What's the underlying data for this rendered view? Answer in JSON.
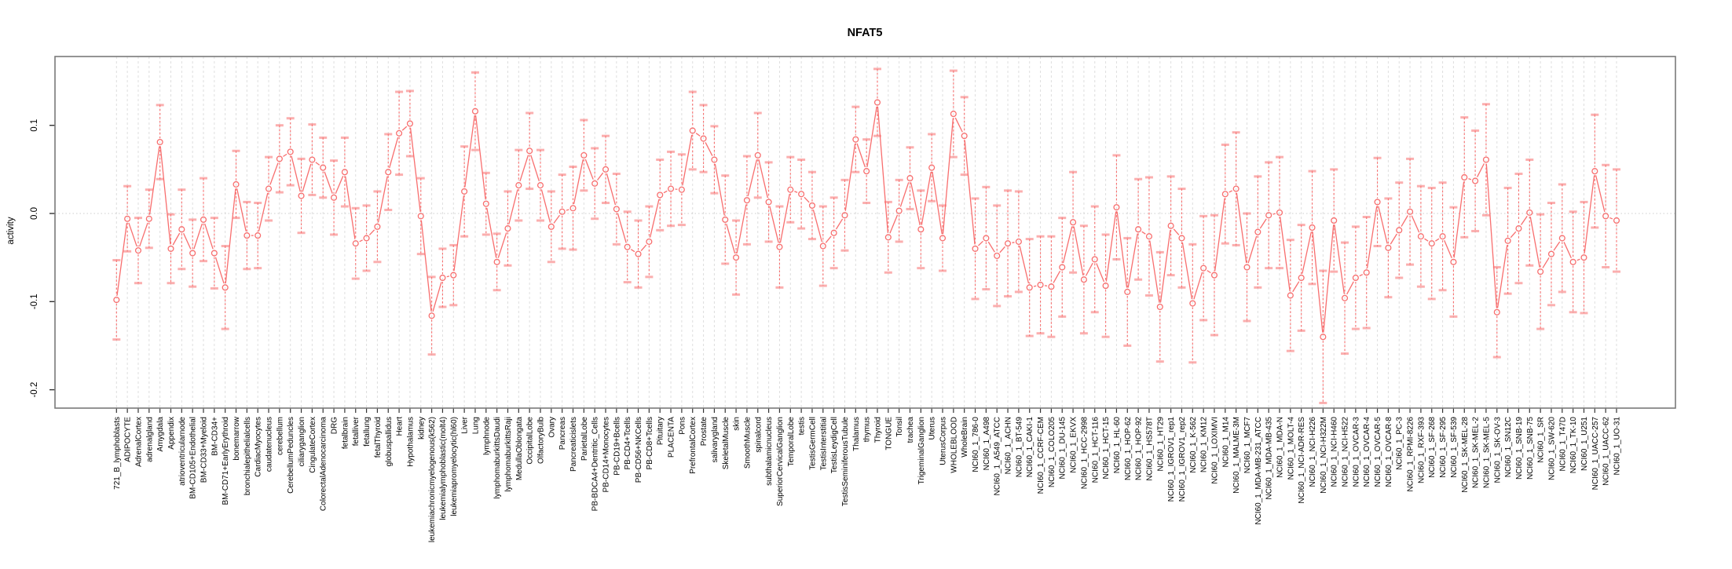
{
  "title": "NFAT5",
  "ylabel": "activity",
  "colors": {
    "series": "#f86e6e",
    "series_light": "rgba(248,110,110,0.55)",
    "grid": "#dedede",
    "zero_line": "#cccccc",
    "box_border": "#7a7a7a",
    "tick": "#333333",
    "text": "#000000"
  },
  "chart_data": {
    "type": "line",
    "title": "NFAT5",
    "xlabel": "",
    "ylabel": "activity",
    "legend": "none",
    "grid": "vertical dashed line per category; dotted horizontal line at y=0",
    "marker": "open-circle with symmetric error bars",
    "ylim": [
      -0.221,
      0.178
    ],
    "yticks": [
      0.1,
      0.0,
      -0.1,
      -0.2
    ],
    "ytick_labels": [
      "0.1",
      "0.0",
      "-0.1",
      "-0.2"
    ],
    "categories": [
      "721_B_lymphoblasts",
      "ADIPOCYTE",
      "AdrenalCortex",
      "adrenalgland",
      "Amygdala",
      "Appendix",
      "atrioventricularnode",
      "BM-CD105+Endothelial",
      "BM-CD33+Myeloid",
      "BM-CD34+",
      "BM-CD71+EarlyErythroid",
      "bonemarrow",
      "bronchialepithelialcells",
      "CardiacMyocytes",
      "caudatenucleus",
      "cerebellum",
      "CerebellumPeduncles",
      "ciliaryganglion",
      "CingulateCortex",
      "ColorectalAdenocarcinoma",
      "DRG",
      "fetalbrain",
      "fetalliver",
      "fetallung",
      "fetalThyroid",
      "globuspallidus",
      "Heart",
      "Hypothalamus",
      "kidney",
      "leukemiachronicmyelogenous(k562)",
      "leukemialymphoblastic(molt4)",
      "leukemiapromyelocytic(hl60)",
      "Liver",
      "Lung",
      "lymphnode",
      "lymphomaburkittsDaudi",
      "lymphomaburkittsRaji",
      "MedullaOblongata",
      "OccipitalLobe",
      "OlfactoryBulb",
      "Ovary",
      "Pancreas",
      "Pancreaticislets",
      "ParietalLobe",
      "PB-BDCA4+Dentritic_Cells",
      "PB-CD14+Monocytes",
      "PB-CD19+Bcells",
      "PB-CD4+Tcells",
      "PB-CD56+NKCells",
      "PB-CD8+Tcells",
      "Pituitary",
      "PLACENTA",
      "Pons",
      "PrefrontalCortex",
      "Prostate",
      "salivarygland",
      "SkeletalMuscle",
      "skin",
      "SmoothMuscle",
      "spinalcord",
      "subthalamicnucleus",
      "SuperiorCervicalGanglion",
      "TemporalLobe",
      "testis",
      "TestisGermCell",
      "TestisInterstitial",
      "TestisLeydigCell",
      "TestisSeminiferousTubule",
      "Thalamus",
      "thymus",
      "Thyroid",
      "TONGUE",
      "Tonsil",
      "trachea",
      "TrigeminalGanglion",
      "Uterus",
      "UterusCorpus",
      "WHOLEBLOOD",
      "WholeBrain",
      "NCI60_1_786-0",
      "NCI60_1_A498",
      "NCI60_1_A549_ATCC",
      "NCI60_1_ACHN",
      "NCI60_1_BT-549",
      "NCI60_1_CAKI-1",
      "NCI60_1_CCRF-CEM",
      "NCI60_1_COLO205",
      "NCI60_1_DU-145",
      "NCI60_1_EKVX",
      "NCI60_1_HCC-2998",
      "NCI60_1_HCT-116",
      "NCI60_1_HCT-15",
      "NCI60_1_HL-60",
      "NCI60_1_HOP-62",
      "NCI60_1_HOP-92",
      "NCI60_1_HS578T",
      "NCI60_1_HT29",
      "NCI60_1_IGROV1_rep1",
      "NCI60_1_IGROV1_rep2",
      "NCI60_1_K-562",
      "NCI60_1_KM12",
      "NCI60_1_LOXIMVI",
      "NCI60_1_M14",
      "NCI60_1_MALME-3M",
      "NCI60_1_MCF7",
      "NCI60_1_MDA-MB-231_ATCC",
      "NCI60_1_MDA-MB-435",
      "NCI60_1_MDA-N",
      "NCI60_1_MOLT-4",
      "NCI60_1_NCI-ADR-RES",
      "NCI60_1_NCI-H226",
      "NCI60_1_NCI-H322M",
      "NCI60_1_NCI-H460",
      "NCI60_1_NCI-H522",
      "NCI60_1_OVCAR-3",
      "NCI60_1_OVCAR-4",
      "NCI60_1_OVCAR-5",
      "NCI60_1_OVCAR-8",
      "NCI60_1_PC-3",
      "NCI60_1_RPMI-8226",
      "NCI60_1_RXF-393",
      "NCI60_1_SF-268",
      "NCI60_1_SF-295",
      "NCI60_1_SF-539",
      "NCI60_1_SK-MEL-28",
      "NCI60_1_SK-MEL-2",
      "NCI60_1_SK-MEL-5",
      "NCI60_1_SK-OV-3",
      "NCI60_1_SN12C",
      "NCI60_1_SNB-19",
      "NCI60_1_SNB-75",
      "NCI60_1_SR",
      "NCI60_1_SW-620",
      "NCI60_1_T47D",
      "NCI60_1_TK-10",
      "NCI60_1_U251",
      "NCI60_1_UACC-257",
      "NCI60_1_UACC-62",
      "NCI60_1_UO-31"
    ],
    "series": [
      {
        "name": "activity",
        "values": [
          -0.098,
          -0.006,
          -0.042,
          -0.006,
          0.081,
          -0.04,
          -0.018,
          -0.045,
          -0.007,
          -0.045,
          -0.084,
          0.033,
          -0.025,
          -0.025,
          0.028,
          0.062,
          0.07,
          0.02,
          0.061,
          0.052,
          0.018,
          0.047,
          -0.034,
          -0.028,
          -0.015,
          0.047,
          0.091,
          0.102,
          -0.003,
          -0.116,
          -0.073,
          -0.07,
          0.025,
          0.116,
          0.011,
          -0.055,
          -0.017,
          0.032,
          0.071,
          0.032,
          -0.015,
          0.002,
          0.006,
          0.066,
          0.034,
          0.05,
          0.005,
          -0.038,
          -0.046,
          -0.032,
          0.021,
          0.028,
          0.027,
          0.094,
          0.085,
          0.061,
          -0.007,
          -0.05,
          0.015,
          0.066,
          0.013,
          -0.038,
          0.027,
          0.022,
          0.009,
          -0.037,
          -0.022,
          -0.002,
          0.084,
          0.048,
          0.126,
          -0.027,
          0.003,
          0.04,
          -0.018,
          0.052,
          -0.028,
          0.113,
          0.088,
          -0.04,
          -0.028,
          -0.048,
          -0.034,
          -0.032,
          -0.084,
          -0.081,
          -0.083,
          -0.061,
          -0.01,
          -0.075,
          -0.052,
          -0.082,
          0.007,
          -0.089,
          -0.018,
          -0.026,
          -0.106,
          -0.014,
          -0.028,
          -0.102,
          -0.062,
          -0.07,
          0.022,
          0.028,
          -0.061,
          -0.021,
          -0.002,
          0.001,
          -0.093,
          -0.073,
          -0.016,
          -0.14,
          -0.008,
          -0.096,
          -0.073,
          -0.067,
          0.013,
          -0.039,
          -0.019,
          0.002,
          -0.026,
          -0.034,
          -0.026,
          -0.055,
          0.041,
          0.037,
          0.061,
          -0.112,
          -0.031,
          -0.017,
          0.001,
          -0.066,
          -0.046,
          -0.028,
          -0.055,
          -0.05,
          0.048,
          -0.003,
          -0.008
        ],
        "errors": [
          0.045,
          0.037,
          0.037,
          0.033,
          0.042,
          0.039,
          0.045,
          0.038,
          0.047,
          0.04,
          0.047,
          0.038,
          0.038,
          0.037,
          0.036,
          0.038,
          0.038,
          0.042,
          0.04,
          0.034,
          0.042,
          0.039,
          0.04,
          0.037,
          0.04,
          0.043,
          0.047,
          0.037,
          0.043,
          0.044,
          0.033,
          0.034,
          0.051,
          0.044,
          0.035,
          0.032,
          0.042,
          0.04,
          0.043,
          0.04,
          0.04,
          0.042,
          0.047,
          0.04,
          0.04,
          0.038,
          0.04,
          0.04,
          0.038,
          0.04,
          0.04,
          0.042,
          0.04,
          0.044,
          0.038,
          0.038,
          0.05,
          0.042,
          0.05,
          0.048,
          0.045,
          0.046,
          0.037,
          0.039,
          0.038,
          0.045,
          0.04,
          0.04,
          0.037,
          0.036,
          0.038,
          0.04,
          0.035,
          0.035,
          0.044,
          0.038,
          0.037,
          0.049,
          0.044,
          0.057,
          0.058,
          0.057,
          0.06,
          0.057,
          0.055,
          0.055,
          0.057,
          0.056,
          0.057,
          0.061,
          0.06,
          0.058,
          0.059,
          0.061,
          0.057,
          0.067,
          0.062,
          0.056,
          0.056,
          0.067,
          0.059,
          0.068,
          0.056,
          0.064,
          0.061,
          0.063,
          0.06,
          0.063,
          0.063,
          0.06,
          0.064,
          0.075,
          0.058,
          0.063,
          0.058,
          0.063,
          0.05,
          0.056,
          0.054,
          0.06,
          0.057,
          0.063,
          0.061,
          0.062,
          0.068,
          0.057,
          0.063,
          0.051,
          0.06,
          0.062,
          0.06,
          0.065,
          0.058,
          0.061,
          0.057,
          0.063,
          0.064,
          0.058,
          0.058
        ]
      }
    ]
  }
}
